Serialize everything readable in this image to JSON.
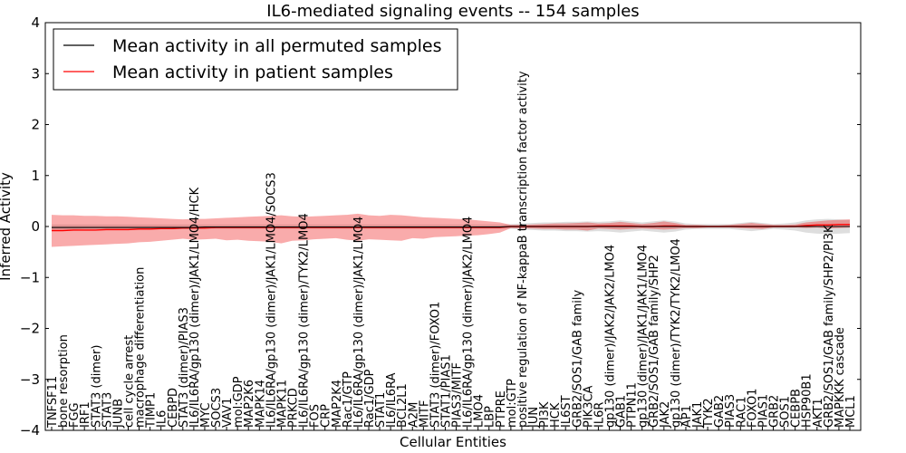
{
  "chart_data": {
    "type": "line",
    "title": "IL6-mediated signaling events -- 154 samples",
    "xlabel": "Cellular Entities",
    "ylabel": "Inferred Activity",
    "ylim": [
      -4,
      4
    ],
    "yticks": [
      -4,
      -3,
      -2,
      -1,
      0,
      1,
      2,
      3,
      4
    ],
    "ytick_labels": [
      "−4",
      "−3",
      "−2",
      "−1",
      "0",
      "1",
      "2",
      "3",
      "4"
    ],
    "legend": [
      {
        "label": "Mean activity in all permuted samples",
        "color": "#000000"
      },
      {
        "label": "Mean activity in patient samples",
        "color": "#ff0000"
      }
    ],
    "categories": [
      "TNFSF11",
      "bone resorption",
      "FGG",
      "IRF1",
      "STAT3 (dimer)",
      "STAT3",
      "JUNB",
      "cell cycle arrest",
      "macrophage differentiation",
      "TIMP1",
      "IL6",
      "CEBPD",
      "STAT3 (dimer)/PIAS3",
      "IL6/IL6RA/gp130 (dimer)/JAK1/LMO4/HCK",
      "MYC",
      "SOCS3",
      "VAV1",
      "mol:GDP",
      "MAP2K6",
      "MAPK14",
      "IL6/IL6RA/gp130 (dimer)/JAK1/LMO4/SOCS3",
      "MAPK11",
      "PRKCD",
      "IL6/IL6RA/gp130 (dimer)/TYK2/LMO4",
      "FOS",
      "CRP",
      "MAP2K4",
      "Rac1/GTP",
      "IL6/IL6RA/gp130 (dimer)/JAK1/LMO4",
      "Rac1/GDP",
      "STAT1",
      "IL6/IL6RA",
      "BCL2L1",
      "A2M",
      "MITF",
      "STAT3 (dimer)/FOXO1",
      "STAT1/PIAS1",
      "PIAS3/MITF",
      "IL6/IL6RA/gp130 (dimer)/JAK2/LMO4",
      "LMO4",
      "LBP",
      "PTPRE",
      "mol:GTP",
      "positive regulation of NF-kappaB transcription factor activity",
      "JUN",
      "PI3K",
      "HCK",
      "IL6ST",
      "GRB2/SOS1/GAB family",
      "PIK3CA",
      "IL6R",
      "gp130 (dimer)/JAK2/JAK2/LMO4",
      "GAB1",
      "PTPN11",
      "gp130 (dimer)/JAK1/JAK1/LMO4",
      "GRB2/SOS1/GAB family/SHP2",
      "JAK2",
      "gp130 (dimer)/TYK2/TYK2/LMO4",
      "AP1",
      "JAK1",
      "TYK2",
      "GAB2",
      "PIAS3",
      "RAC1",
      "FOXO1",
      "PIAS1",
      "GRB2",
      "SOS1",
      "CEBPB",
      "HSP90B1",
      "AKT1",
      "GRB2/SOS1/GAB family/SHP2/PI3K",
      "MAPKKK cascade",
      "MCL1"
    ],
    "series": [
      {
        "name": "Mean activity in patient samples",
        "color": "#ff0000",
        "values": [
          -0.08,
          -0.08,
          -0.07,
          -0.07,
          -0.07,
          -0.06,
          -0.06,
          -0.06,
          -0.05,
          -0.05,
          -0.04,
          -0.04,
          -0.03,
          -0.03,
          -0.03,
          -0.02,
          -0.02,
          -0.02,
          -0.02,
          -0.02,
          -0.02,
          -0.02,
          -0.02,
          -0.02,
          -0.02,
          -0.02,
          -0.02,
          -0.02,
          -0.02,
          -0.02,
          -0.02,
          -0.02,
          -0.02,
          -0.02,
          -0.02,
          -0.02,
          -0.02,
          -0.02,
          -0.02,
          -0.02,
          -0.02,
          -0.02,
          0.0,
          0.0,
          0.0,
          0.0,
          0.0,
          0.0,
          0.0,
          0.0,
          0.01,
          0.01,
          0.01,
          0.01,
          0.0,
          0.0,
          0.01,
          0.01,
          0.0,
          0.0,
          0.0,
          0.0,
          0.0,
          0.0,
          0.0,
          0.0,
          0.0,
          0.0,
          0.0,
          0.02,
          0.03,
          0.03,
          0.04,
          0.04
        ],
        "band_low": [
          -0.4,
          -0.39,
          -0.38,
          -0.37,
          -0.36,
          -0.35,
          -0.34,
          -0.33,
          -0.31,
          -0.3,
          -0.28,
          -0.26,
          -0.24,
          -0.26,
          -0.25,
          -0.24,
          -0.27,
          -0.26,
          -0.28,
          -0.29,
          -0.3,
          -0.33,
          -0.28,
          -0.27,
          -0.25,
          -0.24,
          -0.23,
          -0.26,
          -0.28,
          -0.25,
          -0.26,
          -0.27,
          -0.28,
          -0.23,
          -0.24,
          -0.21,
          -0.2,
          -0.19,
          -0.18,
          -0.17,
          -0.15,
          -0.12,
          -0.03,
          -0.04,
          -0.04,
          -0.05,
          -0.05,
          -0.06,
          -0.06,
          -0.08,
          -0.04,
          -0.05,
          -0.06,
          -0.05,
          -0.04,
          -0.05,
          -0.06,
          -0.05,
          -0.03,
          -0.03,
          -0.02,
          -0.02,
          -0.02,
          -0.03,
          -0.04,
          -0.05,
          -0.02,
          -0.02,
          -0.02,
          -0.03,
          -0.02,
          -0.04,
          -0.03,
          -0.02
        ],
        "band_high": [
          0.23,
          0.22,
          0.22,
          0.21,
          0.21,
          0.2,
          0.2,
          0.19,
          0.18,
          0.17,
          0.16,
          0.15,
          0.14,
          0.15,
          0.15,
          0.16,
          0.17,
          0.18,
          0.19,
          0.2,
          0.21,
          0.22,
          0.2,
          0.19,
          0.2,
          0.21,
          0.22,
          0.23,
          0.25,
          0.22,
          0.21,
          0.23,
          0.22,
          0.2,
          0.18,
          0.17,
          0.16,
          0.15,
          0.14,
          0.12,
          0.1,
          0.08,
          0.03,
          0.03,
          0.04,
          0.05,
          0.06,
          0.06,
          0.07,
          0.08,
          0.06,
          0.07,
          0.09,
          0.07,
          0.05,
          0.07,
          0.1,
          0.07,
          0.03,
          0.03,
          0.02,
          0.02,
          0.03,
          0.05,
          0.07,
          0.05,
          0.03,
          0.03,
          0.04,
          0.08,
          0.1,
          0.12,
          0.13,
          0.14
        ]
      },
      {
        "name": "Mean activity in all permuted samples",
        "color": "#000000",
        "values": [
          -0.02,
          -0.02,
          -0.02,
          -0.02,
          -0.02,
          -0.02,
          -0.02,
          -0.02,
          -0.02,
          -0.02,
          -0.02,
          -0.02,
          -0.02,
          -0.02,
          -0.01,
          -0.01,
          -0.01,
          -0.01,
          -0.01,
          -0.01,
          -0.01,
          -0.01,
          -0.01,
          -0.01,
          -0.01,
          -0.01,
          -0.01,
          -0.01,
          -0.01,
          -0.01,
          -0.01,
          -0.01,
          -0.01,
          -0.01,
          -0.01,
          -0.01,
          -0.01,
          -0.01,
          -0.01,
          -0.01,
          -0.01,
          -0.01,
          0.0,
          0.0,
          0.0,
          0.0,
          0.0,
          0.0,
          0.0,
          0.0,
          0.0,
          0.0,
          0.0,
          0.0,
          0.0,
          0.0,
          0.0,
          0.0,
          0.0,
          0.0,
          0.0,
          0.0,
          0.0,
          0.0,
          0.0,
          0.0,
          0.0,
          0.0,
          0.0,
          0.0,
          0.0,
          0.0,
          0.0,
          0.0
        ],
        "band_low": [
          -0.06,
          -0.06,
          -0.06,
          -0.05,
          -0.05,
          -0.05,
          -0.05,
          -0.05,
          -0.05,
          -0.05,
          -0.05,
          -0.05,
          -0.05,
          -0.05,
          -0.05,
          -0.05,
          -0.05,
          -0.05,
          -0.05,
          -0.05,
          -0.05,
          -0.05,
          -0.05,
          -0.05,
          -0.05,
          -0.05,
          -0.05,
          -0.05,
          -0.05,
          -0.05,
          -0.05,
          -0.05,
          -0.05,
          -0.05,
          -0.05,
          -0.05,
          -0.05,
          -0.05,
          -0.05,
          -0.05,
          -0.05,
          -0.05,
          -0.05,
          -0.06,
          -0.07,
          -0.08,
          -0.08,
          -0.09,
          -0.09,
          -0.1,
          -0.09,
          -0.1,
          -0.12,
          -0.1,
          -0.08,
          -0.1,
          -0.12,
          -0.1,
          -0.06,
          -0.05,
          -0.05,
          -0.05,
          -0.05,
          -0.07,
          -0.09,
          -0.07,
          -0.05,
          -0.06,
          -0.08,
          -0.12,
          -0.14,
          -0.15,
          -0.14,
          -0.13
        ],
        "band_high": [
          0.04,
          0.04,
          0.04,
          0.04,
          0.04,
          0.04,
          0.04,
          0.04,
          0.04,
          0.04,
          0.04,
          0.04,
          0.04,
          0.04,
          0.04,
          0.04,
          0.04,
          0.04,
          0.04,
          0.04,
          0.04,
          0.04,
          0.04,
          0.04,
          0.04,
          0.04,
          0.04,
          0.04,
          0.04,
          0.04,
          0.04,
          0.04,
          0.04,
          0.04,
          0.04,
          0.04,
          0.04,
          0.04,
          0.04,
          0.04,
          0.04,
          0.04,
          0.05,
          0.06,
          0.07,
          0.08,
          0.08,
          0.09,
          0.09,
          0.1,
          0.09,
          0.1,
          0.12,
          0.1,
          0.08,
          0.1,
          0.12,
          0.1,
          0.06,
          0.05,
          0.05,
          0.05,
          0.05,
          0.07,
          0.09,
          0.07,
          0.05,
          0.06,
          0.08,
          0.12,
          0.14,
          0.15,
          0.14,
          0.13
        ]
      }
    ]
  }
}
